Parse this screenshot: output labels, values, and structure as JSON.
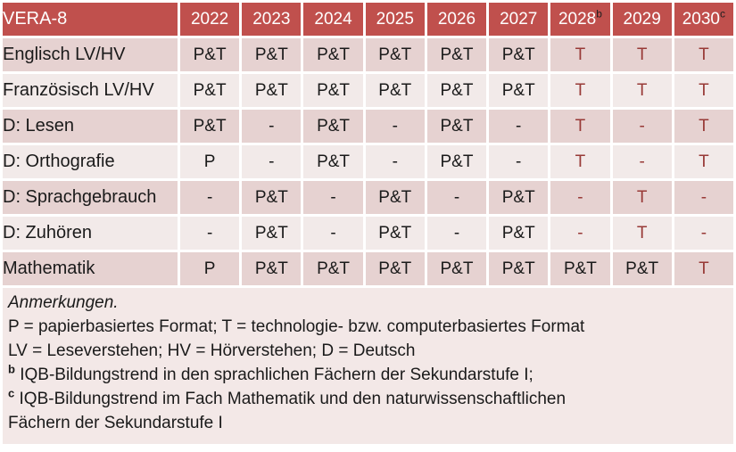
{
  "colors": {
    "header_bg": "#C0504D",
    "header_text": "#FFFFFF",
    "header_sup_text": "#1F1F1F",
    "row_dark_bg": "#E6D2D1",
    "row_light_bg": "#F2EAE9",
    "notes_bg": "#F3E8E7",
    "text": "#1A1A1A",
    "accent_red": "#983A37",
    "page_bg": "#FFFFFF"
  },
  "table": {
    "title": "VERA-8",
    "year_columns": [
      {
        "label": "2022",
        "sup": ""
      },
      {
        "label": "2023",
        "sup": ""
      },
      {
        "label": "2024",
        "sup": ""
      },
      {
        "label": "2025",
        "sup": ""
      },
      {
        "label": "2026",
        "sup": ""
      },
      {
        "label": "2027",
        "sup": ""
      },
      {
        "label": "2028",
        "sup": "b"
      },
      {
        "label": "2029",
        "sup": ""
      },
      {
        "label": "2030",
        "sup": "c"
      }
    ],
    "rows": [
      {
        "label": "Englisch LV/HV",
        "cells": [
          {
            "text": "P&T"
          },
          {
            "text": "P&T"
          },
          {
            "text": "P&T"
          },
          {
            "text": "P&T"
          },
          {
            "text": "P&T"
          },
          {
            "text": "P&T"
          },
          {
            "text": "T",
            "red": true
          },
          {
            "text": "T",
            "red": true
          },
          {
            "text": "T",
            "red": true
          }
        ]
      },
      {
        "label": "Französisch LV/HV",
        "cells": [
          {
            "text": "P&T"
          },
          {
            "text": "P&T"
          },
          {
            "text": "P&T"
          },
          {
            "text": "P&T"
          },
          {
            "text": "P&T"
          },
          {
            "text": "P&T"
          },
          {
            "text": "T",
            "red": true
          },
          {
            "text": "T",
            "red": true
          },
          {
            "text": "T",
            "red": true
          }
        ]
      },
      {
        "label": "D: Lesen",
        "cells": [
          {
            "text": "P&T"
          },
          {
            "text": "-"
          },
          {
            "text": "P&T"
          },
          {
            "text": "-"
          },
          {
            "text": "P&T"
          },
          {
            "text": "-"
          },
          {
            "text": "T",
            "red": true
          },
          {
            "text": "-",
            "red": true
          },
          {
            "text": "T",
            "red": true
          }
        ]
      },
      {
        "label": "D: Orthografie",
        "cells": [
          {
            "text": "P"
          },
          {
            "text": "-"
          },
          {
            "text": "P&T"
          },
          {
            "text": "-"
          },
          {
            "text": "P&T"
          },
          {
            "text": "-"
          },
          {
            "text": "T",
            "red": true
          },
          {
            "text": "-",
            "red": true
          },
          {
            "text": "T",
            "red": true
          }
        ]
      },
      {
        "label": "D: Sprachgebrauch",
        "cells": [
          {
            "text": "-"
          },
          {
            "text": "P&T"
          },
          {
            "text": "-"
          },
          {
            "text": "P&T"
          },
          {
            "text": "-"
          },
          {
            "text": "P&T"
          },
          {
            "text": "-",
            "red": true
          },
          {
            "text": "T",
            "red": true
          },
          {
            "text": "-",
            "red": true
          }
        ]
      },
      {
        "label": "D: Zuhören",
        "cells": [
          {
            "text": "-"
          },
          {
            "text": "P&T"
          },
          {
            "text": "-"
          },
          {
            "text": "P&T"
          },
          {
            "text": "-"
          },
          {
            "text": "P&T"
          },
          {
            "text": "-",
            "red": true
          },
          {
            "text": "T",
            "red": true
          },
          {
            "text": "-",
            "red": true
          }
        ]
      },
      {
        "label": "Mathematik",
        "cells": [
          {
            "text": "P"
          },
          {
            "text": "P&T"
          },
          {
            "text": "P&T"
          },
          {
            "text": "P&T"
          },
          {
            "text": "P&T"
          },
          {
            "text": "P&T"
          },
          {
            "text": "P&T"
          },
          {
            "text": "P&T"
          },
          {
            "text": "T",
            "red": true
          }
        ]
      }
    ]
  },
  "notes": {
    "lines": [
      {
        "sup": "",
        "text": "Anmerkungen.",
        "italic": true
      },
      {
        "sup": "",
        "text": "P = papierbasiertes Format; T = technologie- bzw. computerbasiertes Format",
        "italic": false
      },
      {
        "sup": "",
        "text": "LV = Leseverstehen; HV = Hörverstehen; D = Deutsch",
        "italic": false
      },
      {
        "sup": "b",
        "text": "IQB-Bildungstrend in den sprachlichen Fächern der Sekundarstufe I;",
        "italic": false
      },
      {
        "sup": "c",
        "text": "IQB-Bildungstrend im Fach Mathematik und den naturwissenschaftlichen",
        "italic": false
      },
      {
        "sup": "",
        "text": "Fächern der Sekundarstufe I",
        "italic": false
      }
    ]
  }
}
